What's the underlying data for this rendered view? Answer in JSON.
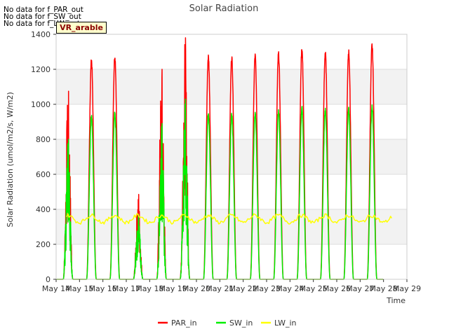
{
  "chart_data": {
    "type": "line",
    "title": "Solar Radiation",
    "xlabel": "Time",
    "ylabel": "Solar Radiation (umol/m2/s, W/m2)",
    "ylim": [
      0,
      1400
    ],
    "yticks": [
      0,
      200,
      400,
      600,
      800,
      1000,
      1200,
      1400
    ],
    "xlim": [
      14,
      29
    ],
    "xticks": [
      14,
      15,
      16,
      17,
      18,
      19,
      20,
      21,
      22,
      23,
      24,
      25,
      26,
      27,
      28,
      29
    ],
    "xtick_labels": [
      "May 14",
      "May 15",
      "May 16",
      "May 17",
      "May 18",
      "May 19",
      "May 20",
      "May 21",
      "May 22",
      "May 23",
      "May 24",
      "May 25",
      "May 26",
      "May 27",
      "May 28",
      "May 29"
    ],
    "background_bands": true,
    "legend_position": "bottom-center",
    "no_data_notes": [
      "No data for f_PAR_out",
      "No data for f_SW_out",
      "No data for f_LW_out"
    ],
    "variable_box_label": "VR_arable",
    "series": [
      {
        "name": "PAR_in",
        "color": "#ff0000",
        "daily_peaks": [
          1075,
          1270,
          1295,
          485,
          1200,
          1380,
          1290,
          1285,
          1295,
          1305,
          1335,
          1315,
          1320,
          1355
        ],
        "cloudy_days": [
          0,
          3,
          4,
          5
        ]
      },
      {
        "name": "SW_in",
        "color": "#00ee00",
        "daily_peaks": [
          800,
          945,
          965,
          370,
          890,
          1030,
          960,
          955,
          965,
          975,
          995,
          980,
          985,
          1005
        ],
        "cloudy_days": [
          0,
          3,
          4,
          5
        ]
      },
      {
        "name": "LW_in",
        "color": "#ffff00",
        "baseline": 345,
        "range": [
          310,
          385
        ]
      }
    ],
    "day_start": 14.5
  }
}
